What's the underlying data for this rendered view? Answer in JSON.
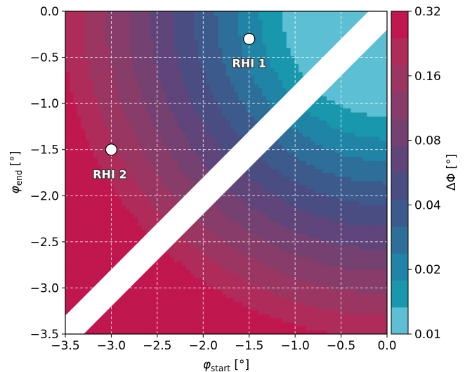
{
  "chart_data": {
    "type": "heatmap",
    "xlabel_symbol": "φ",
    "xlabel_sub": "start",
    "xlabel_unit": " [°]",
    "ylabel_symbol": "φ",
    "ylabel_sub": "end",
    "ylabel_unit": " [°]",
    "xlim": [
      -3.5,
      0.0
    ],
    "ylim": [
      -3.5,
      0.0
    ],
    "xticks": [
      "−3.5",
      "−3.0",
      "−2.5",
      "−2.0",
      "−1.5",
      "−1.0",
      "−0.5",
      "0.0"
    ],
    "yticks": [
      "0.0",
      "−0.5",
      "−1.0",
      "−1.5",
      "−2.0",
      "−2.5",
      "−3.0",
      "−3.5"
    ],
    "grid": true,
    "colorbar": {
      "label": "ΔΦ [°]",
      "levels": [
        "0.01",
        "0.02",
        "0.04",
        "0.08",
        "0.16",
        "0.32"
      ],
      "colors": [
        "#5dbfd3",
        "#1998ad",
        "#1f84a6",
        "#2d6f99",
        "#3d5a8c",
        "#4a4d82",
        "#5f457a",
        "#744171",
        "#883c69",
        "#9b3662",
        "#af2c5a",
        "#c0174f"
      ]
    },
    "annotations": [
      {
        "label": "RHI 1",
        "x": -1.5,
        "y": -0.3
      },
      {
        "label": "RHI 2",
        "x": -3.0,
        "y": -1.5
      }
    ]
  }
}
